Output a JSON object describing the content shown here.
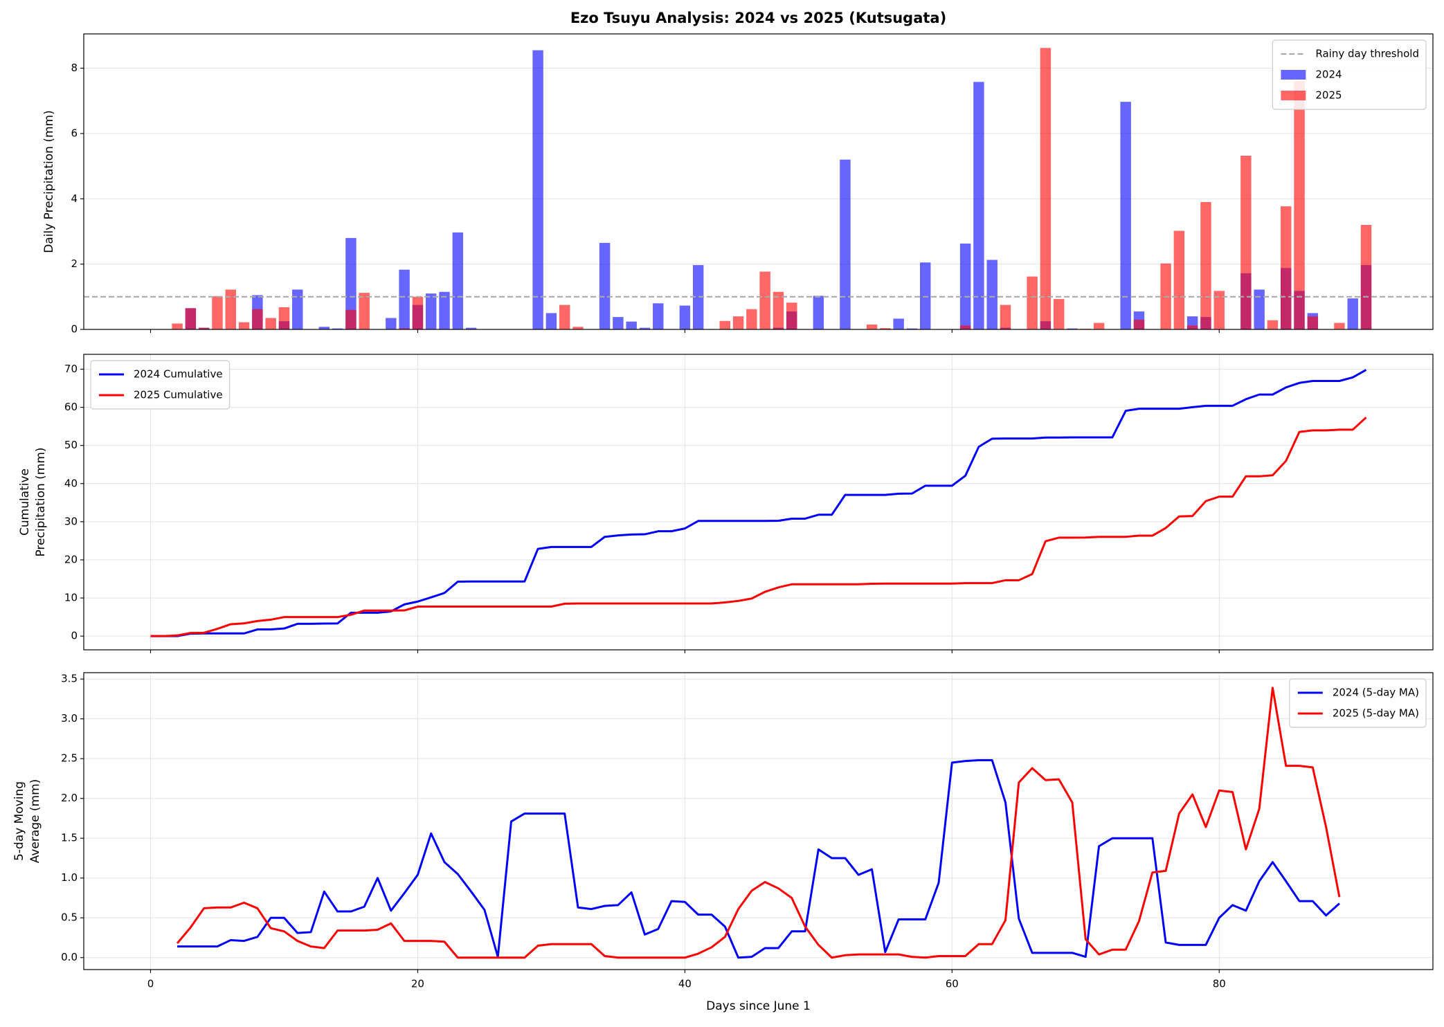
{
  "chart_data": [
    {
      "type": "bar",
      "title": "Ezo Tsuyu Analysis: 2024 vs 2025 (Kutsugata)",
      "ylabel": [
        "Daily Precipitation (mm)"
      ],
      "x": [
        0,
        1,
        2,
        3,
        4,
        5,
        6,
        7,
        8,
        9,
        10,
        11,
        12,
        13,
        14,
        15,
        16,
        17,
        18,
        19,
        20,
        21,
        22,
        23,
        24,
        25,
        26,
        27,
        28,
        29,
        30,
        31,
        32,
        33,
        34,
        35,
        36,
        37,
        38,
        39,
        40,
        41,
        42,
        43,
        44,
        45,
        46,
        47,
        48,
        49,
        50,
        51,
        52,
        53,
        54,
        55,
        56,
        57,
        58,
        59,
        60,
        61,
        62,
        63,
        64,
        65,
        66,
        67,
        68,
        69,
        70,
        71,
        72,
        73,
        74,
        75,
        76,
        77,
        78,
        79,
        80,
        81,
        82,
        83,
        84,
        85,
        86,
        87,
        88,
        89,
        90,
        91
      ],
      "series": [
        {
          "name": "2024",
          "color": "#0000ff",
          "alpha": 0.6,
          "values": [
            0,
            0,
            0,
            0.65,
            0.05,
            0,
            0,
            0,
            1.05,
            0,
            0.25,
            1.22,
            0,
            0.08,
            0.03,
            2.8,
            0,
            0,
            0.35,
            1.83,
            0.75,
            1.1,
            1.15,
            2.97,
            0.05,
            0,
            0,
            0,
            0,
            8.55,
            0.5,
            0,
            0,
            0,
            2.65,
            0.38,
            0.24,
            0.05,
            0.8,
            0,
            0.73,
            1.97,
            0,
            0,
            0,
            0,
            0,
            0.05,
            0.55,
            0,
            1.03,
            0,
            5.2,
            0,
            0,
            0,
            0.33,
            0.03,
            2.05,
            0,
            0,
            2.63,
            7.58,
            2.13,
            0.05,
            0,
            0,
            0.25,
            0,
            0.03,
            0,
            0,
            0,
            6.97,
            0.55,
            0,
            0,
            0,
            0.4,
            0.38,
            0,
            0,
            1.72,
            1.22,
            0,
            1.88,
            1.18,
            0.5,
            0,
            0,
            0.95,
            1.97
          ]
        },
        {
          "name": "2025",
          "color": "#ff0000",
          "alpha": 0.6,
          "values": [
            0,
            0,
            0.18,
            0.65,
            0.05,
            1.02,
            1.22,
            0.22,
            0.62,
            0.35,
            0.68,
            0,
            0,
            0,
            0,
            0.6,
            1.12,
            0,
            0,
            0.03,
            1.0,
            0,
            0,
            0,
            0,
            0,
            0,
            0,
            0,
            0,
            0,
            0.75,
            0.08,
            0,
            0,
            0,
            0,
            0,
            0,
            0,
            0,
            0,
            0,
            0.26,
            0.4,
            0.62,
            1.77,
            1.15,
            0.82,
            0,
            0,
            0,
            0,
            0,
            0.15,
            0.04,
            0,
            0,
            0,
            0,
            0,
            0.12,
            0,
            0,
            0.75,
            0,
            1.62,
            8.62,
            0.93,
            0,
            0.02,
            0.2,
            0,
            0,
            0.3,
            0,
            2.02,
            3.02,
            0.12,
            3.9,
            1.18,
            0,
            5.32,
            0,
            0.28,
            3.77,
            7.6,
            0.4,
            0,
            0.2,
            0,
            3.2
          ]
        }
      ],
      "threshold": {
        "value": 1,
        "label": "Rainy day threshold",
        "color": "#aaaaaa"
      },
      "xlim": [
        -5,
        96
      ],
      "xticks": [
        0,
        20,
        40,
        60,
        80
      ],
      "xtick_labels": false,
      "ylim": [
        0,
        9.05
      ],
      "yticks": [
        0,
        2,
        4,
        6,
        8
      ],
      "grid": "y",
      "legend": "upper right"
    },
    {
      "type": "line",
      "ylabel": [
        "Cumulative",
        "Precipitation (mm)"
      ],
      "x": [
        0,
        1,
        2,
        3,
        4,
        5,
        6,
        7,
        8,
        9,
        10,
        11,
        12,
        13,
        14,
        15,
        16,
        17,
        18,
        19,
        20,
        21,
        22,
        23,
        24,
        25,
        26,
        27,
        28,
        29,
        30,
        31,
        32,
        33,
        34,
        35,
        36,
        37,
        38,
        39,
        40,
        41,
        42,
        43,
        44,
        45,
        46,
        47,
        48,
        49,
        50,
        51,
        52,
        53,
        54,
        55,
        56,
        57,
        58,
        59,
        60,
        61,
        62,
        63,
        64,
        65,
        66,
        67,
        68,
        69,
        70,
        71,
        72,
        73,
        74,
        75,
        76,
        77,
        78,
        79,
        80,
        81,
        82,
        83,
        84,
        85,
        86,
        87,
        88,
        89,
        90,
        91
      ],
      "series": [
        {
          "name": "2024 Cumulative",
          "color": "#0000ff",
          "values": [
            0,
            0,
            0,
            0.65,
            0.7,
            0.7,
            0.7,
            0.7,
            1.75,
            1.75,
            2,
            3.22,
            3.22,
            3.3,
            3.33,
            6.13,
            6.13,
            6.13,
            6.48,
            8.31,
            9.06,
            10.16,
            11.31,
            14.28,
            14.33,
            14.33,
            14.33,
            14.33,
            14.33,
            22.88,
            23.38,
            23.38,
            23.38,
            23.38,
            26.03,
            26.41,
            26.65,
            26.7,
            27.5,
            27.5,
            28.23,
            30.2,
            30.2,
            30.2,
            30.2,
            30.2,
            30.2,
            30.25,
            30.8,
            30.8,
            31.83,
            31.83,
            37.03,
            37.03,
            37.03,
            37.03,
            37.36,
            37.39,
            39.44,
            39.44,
            39.44,
            42.07,
            49.65,
            51.78,
            51.83,
            51.83,
            51.83,
            52.08,
            52.08,
            52.11,
            52.11,
            52.11,
            52.11,
            59.08,
            59.63,
            59.63,
            59.63,
            59.63,
            60.03,
            60.41,
            60.41,
            60.41,
            62.13,
            63.35,
            63.35,
            65.23,
            66.41,
            66.91,
            66.91,
            66.91,
            67.86,
            69.83
          ]
        },
        {
          "name": "2025 Cumulative",
          "color": "#ff0000",
          "values": [
            0,
            0,
            0.18,
            0.83,
            0.88,
            1.9,
            3.12,
            3.34,
            3.96,
            4.31,
            4.99,
            4.99,
            4.99,
            4.99,
            4.99,
            5.59,
            6.71,
            6.71,
            6.71,
            6.74,
            7.74,
            7.74,
            7.74,
            7.74,
            7.74,
            7.74,
            7.74,
            7.74,
            7.74,
            7.74,
            7.74,
            8.49,
            8.57,
            8.57,
            8.57,
            8.57,
            8.57,
            8.57,
            8.57,
            8.57,
            8.57,
            8.57,
            8.57,
            8.83,
            9.23,
            9.85,
            11.62,
            12.77,
            13.59,
            13.59,
            13.59,
            13.59,
            13.59,
            13.59,
            13.74,
            13.78,
            13.78,
            13.78,
            13.78,
            13.78,
            13.78,
            13.9,
            13.9,
            13.9,
            14.65,
            14.65,
            16.27,
            24.89,
            25.82,
            25.82,
            25.84,
            26.04,
            26.04,
            26.04,
            26.34,
            26.34,
            28.36,
            31.38,
            31.5,
            35.4,
            36.58,
            36.58,
            41.9,
            41.9,
            42.18,
            45.95,
            53.55,
            53.95,
            53.95,
            54.15,
            54.15,
            57.35
          ]
        }
      ],
      "xlim": [
        -5,
        96
      ],
      "xticks": [
        0,
        20,
        40,
        60,
        80
      ],
      "xtick_labels": false,
      "ylim": [
        -3.6,
        73.9
      ],
      "yticks": [
        0,
        10,
        20,
        30,
        40,
        50,
        60,
        70
      ],
      "grid": "both",
      "legend": "upper left"
    },
    {
      "type": "line",
      "ylabel": [
        "5-day Moving",
        "Average (mm)"
      ],
      "xlabel": "Days since June 1",
      "x": [
        0,
        1,
        2,
        3,
        4,
        5,
        6,
        7,
        8,
        9,
        10,
        11,
        12,
        13,
        14,
        15,
        16,
        17,
        18,
        19,
        20,
        21,
        22,
        23,
        24,
        25,
        26,
        27,
        28,
        29,
        30,
        31,
        32,
        33,
        34,
        35,
        36,
        37,
        38,
        39,
        40,
        41,
        42,
        43,
        44,
        45,
        46,
        47,
        48,
        49,
        50,
        51,
        52,
        53,
        54,
        55,
        56,
        57,
        58,
        59,
        60,
        61,
        62,
        63,
        64,
        65,
        66,
        67,
        68,
        69,
        70,
        71,
        72,
        73,
        74,
        75,
        76,
        77,
        78,
        79,
        80,
        81,
        82,
        83,
        84,
        85,
        86,
        87,
        88,
        89,
        90,
        91
      ],
      "series": [
        {
          "name": "2024 (5-day MA)",
          "color": "#0000ff",
          "values": [
            null,
            null,
            0.14,
            0.14,
            0.14,
            0.14,
            0.22,
            0.21,
            0.26,
            0.5,
            0.5,
            0.31,
            0.32,
            0.83,
            0.58,
            0.58,
            0.64,
            1.0,
            0.59,
            0.81,
            1.04,
            1.56,
            1.2,
            1.05,
            0.83,
            0.6,
            0.01,
            1.71,
            1.81,
            1.81,
            1.81,
            1.81,
            0.63,
            0.61,
            0.65,
            0.66,
            0.82,
            0.29,
            0.36,
            0.71,
            0.7,
            0.54,
            0.54,
            0.39,
            0,
            0.01,
            0.12,
            0.12,
            0.33,
            0.33,
            1.36,
            1.25,
            1.25,
            1.04,
            1.11,
            0.07,
            0.48,
            0.48,
            0.48,
            0.94,
            2.45,
            2.47,
            2.48,
            2.48,
            1.95,
            0.49,
            0.06,
            0.06,
            0.06,
            0.06,
            0.01,
            1.4,
            1.5,
            1.5,
            1.5,
            1.5,
            0.19,
            0.16,
            0.16,
            0.16,
            0.5,
            0.66,
            0.59,
            0.96,
            1.2,
            0.96,
            0.71,
            0.71,
            0.53,
            0.68,
            null,
            null
          ]
        },
        {
          "name": "2025 (5-day MA)",
          "color": "#ff0000",
          "values": [
            null,
            null,
            0.18,
            0.38,
            0.62,
            0.63,
            0.63,
            0.69,
            0.62,
            0.37,
            0.33,
            0.21,
            0.14,
            0.12,
            0.34,
            0.34,
            0.34,
            0.35,
            0.43,
            0.21,
            0.21,
            0.21,
            0.2,
            0,
            0,
            0,
            0,
            0,
            0,
            0.15,
            0.17,
            0.17,
            0.17,
            0.17,
            0.02,
            0,
            0,
            0,
            0,
            0,
            0,
            0.05,
            0.13,
            0.26,
            0.61,
            0.84,
            0.95,
            0.87,
            0.75,
            0.39,
            0.16,
            0,
            0.03,
            0.04,
            0.04,
            0.04,
            0.04,
            0.01,
            0,
            0.02,
            0.02,
            0.02,
            0.17,
            0.17,
            0.47,
            2.2,
            2.38,
            2.23,
            2.24,
            1.95,
            0.23,
            0.04,
            0.1,
            0.1,
            0.46,
            1.07,
            1.09,
            1.81,
            2.05,
            1.64,
            2.1,
            2.08,
            1.36,
            1.87,
            3.39,
            2.41,
            2.41,
            2.39,
            1.64,
            0.76,
            null,
            null
          ]
        }
      ],
      "xlim": [
        -5,
        96
      ],
      "xticks": [
        0,
        20,
        40,
        60,
        80
      ],
      "ylim": [
        -0.15,
        3.58
      ],
      "yticks": [
        {
          "value": 0,
          "label": "0.0"
        },
        0.5,
        {
          "value": 1,
          "label": "1.0"
        },
        1.5,
        {
          "value": 2,
          "label": "2.0"
        },
        2.5,
        {
          "value": 3,
          "label": "3.0"
        },
        3.5
      ],
      "grid": "both",
      "legend": "upper right"
    }
  ]
}
